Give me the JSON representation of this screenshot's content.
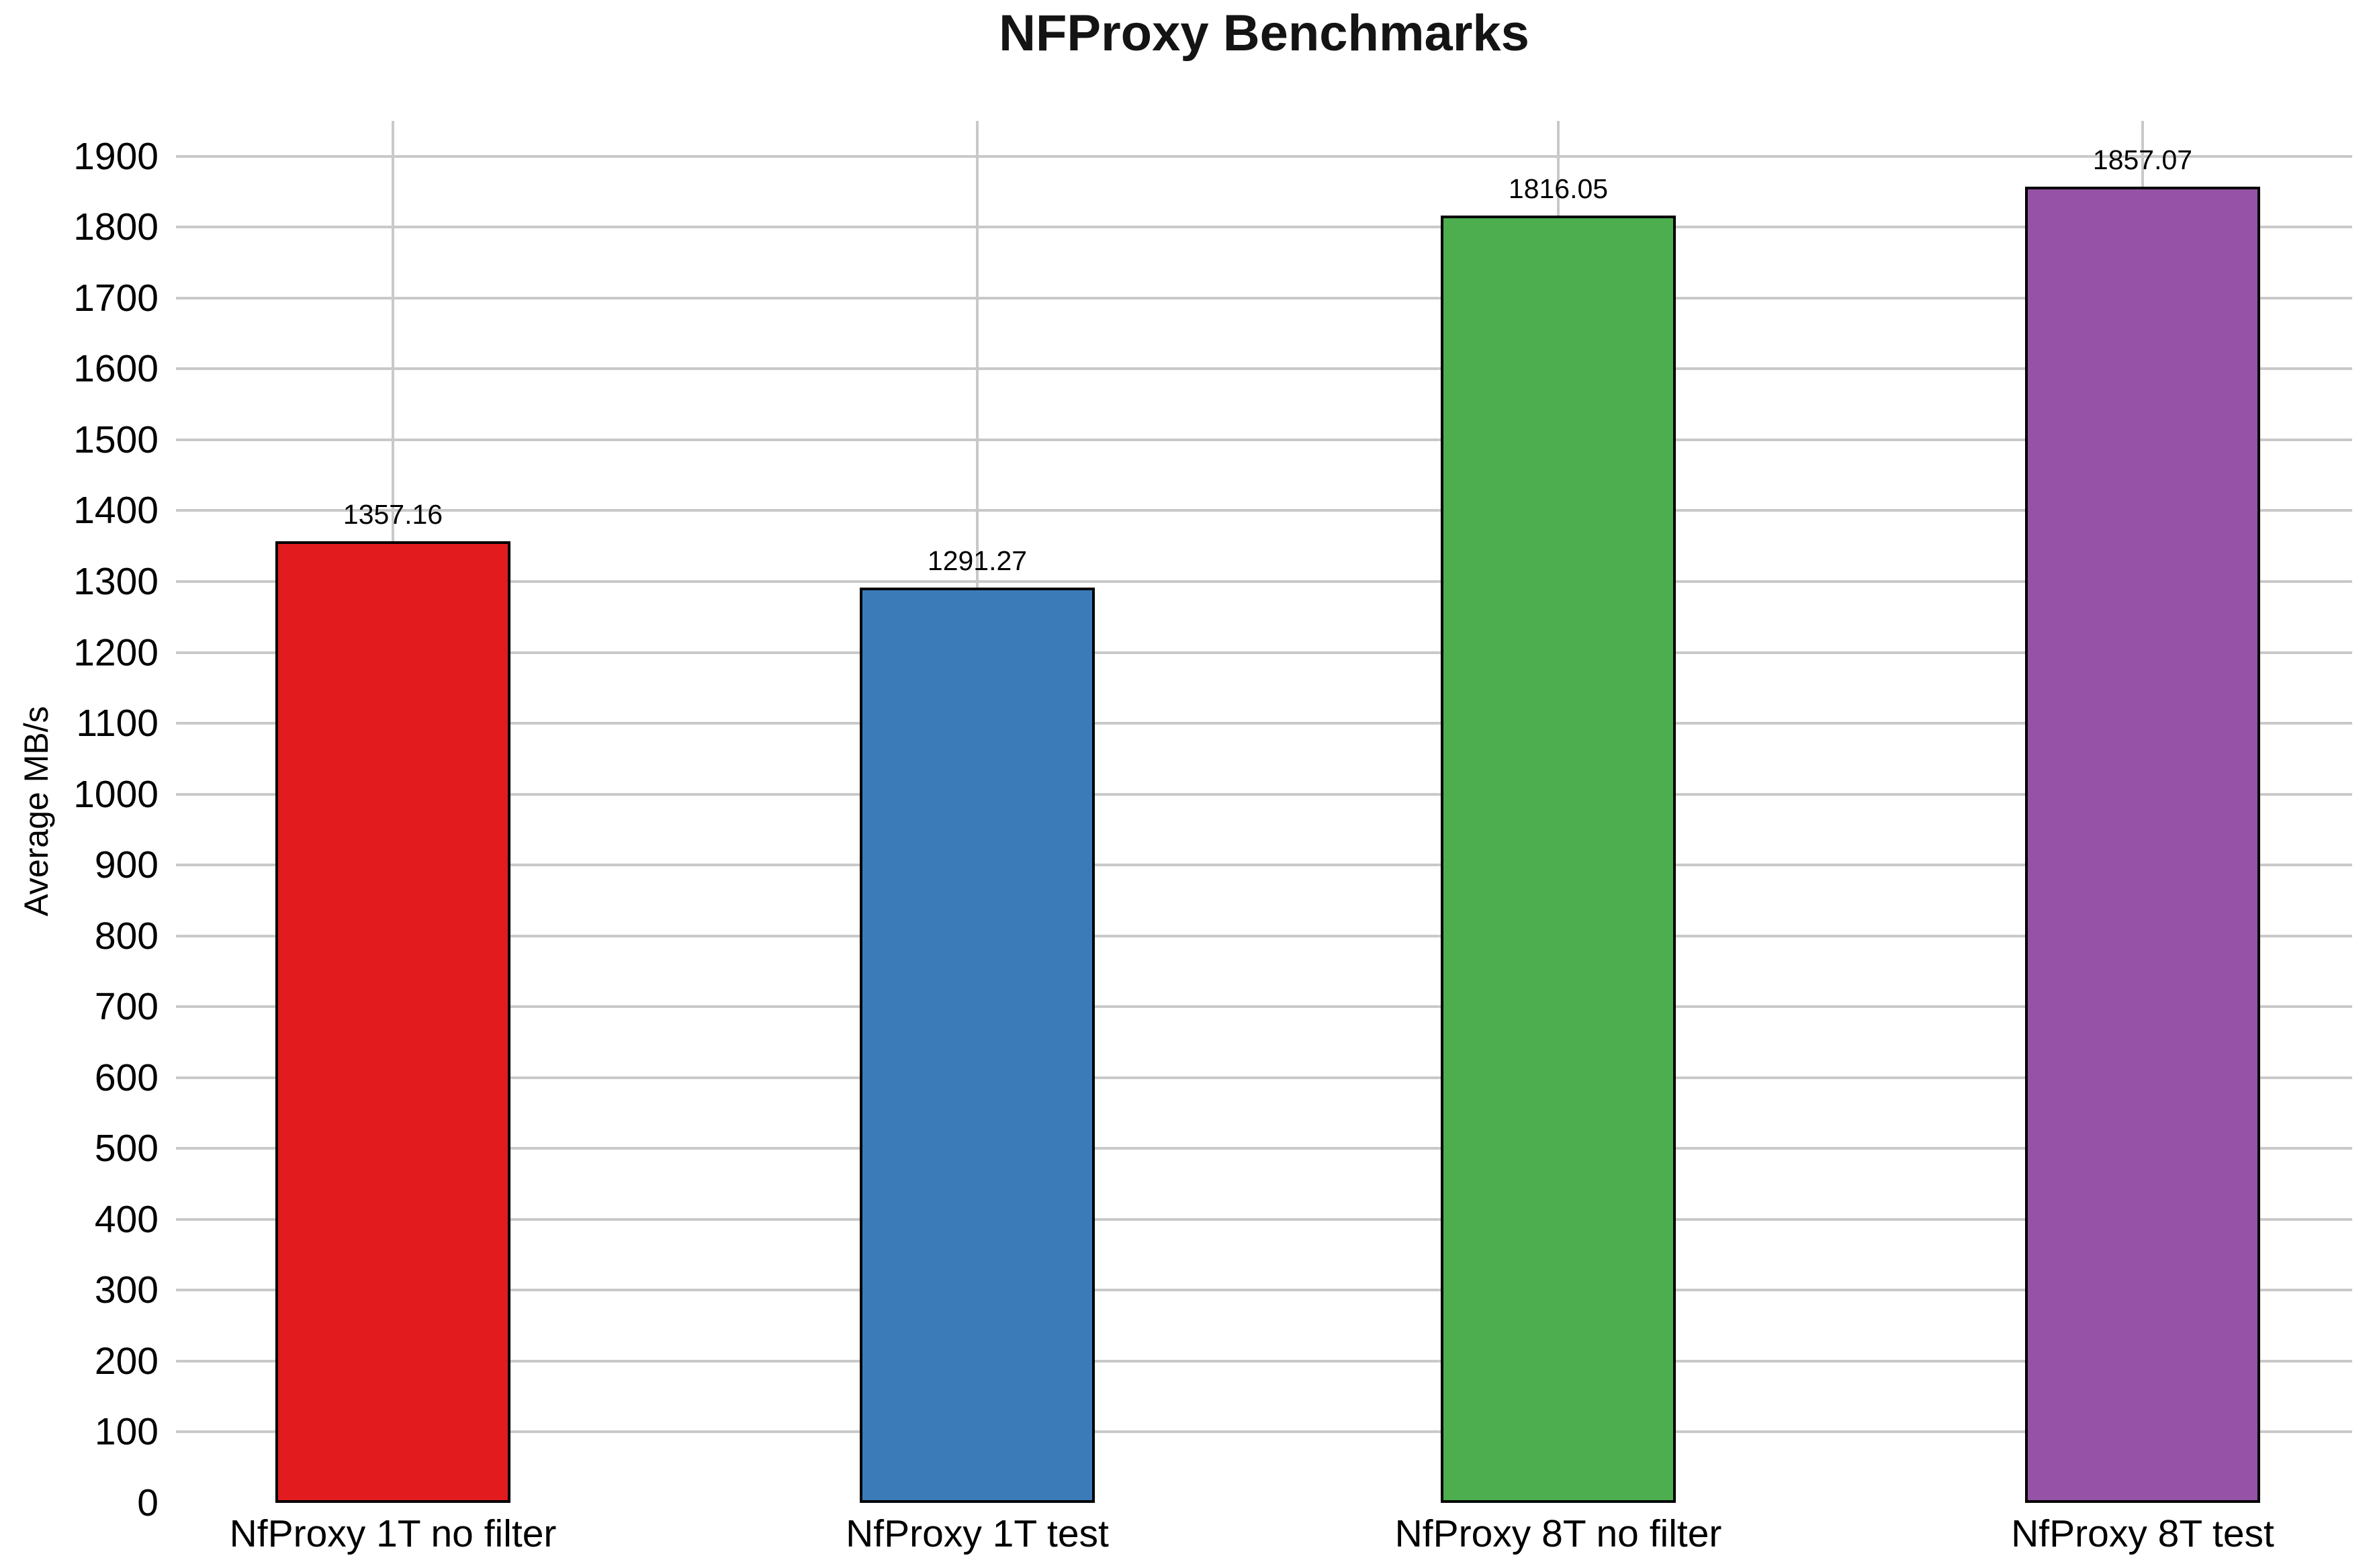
{
  "chart_data": {
    "type": "bar",
    "title": "NFProxy Benchmarks",
    "xlabel": "",
    "ylabel": "Average MB/s",
    "categories": [
      "NfProxy 1T no filter",
      "NfProxy 1T test",
      "NfProxy 8T no filter",
      "NfProxy 8T test"
    ],
    "values": [
      1357.16,
      1291.27,
      1816.05,
      1857.07
    ],
    "value_labels": [
      "1357.16",
      "1291.27",
      "1816.05",
      "1857.07"
    ],
    "bar_colors": [
      "#e11b1e",
      "#3b7cb8",
      "#4cae4f",
      "#9652a6"
    ],
    "bar_edge_color": "#000000",
    "ylim": [
      0,
      1950
    ],
    "yticks": [
      0,
      100,
      200,
      300,
      400,
      500,
      600,
      700,
      800,
      900,
      1000,
      1100,
      1200,
      1300,
      1400,
      1500,
      1600,
      1700,
      1800,
      1900
    ],
    "grid": true,
    "gridline_color": "#c9c9c9",
    "legend_position": "none",
    "background_color": "#ffffff"
  }
}
